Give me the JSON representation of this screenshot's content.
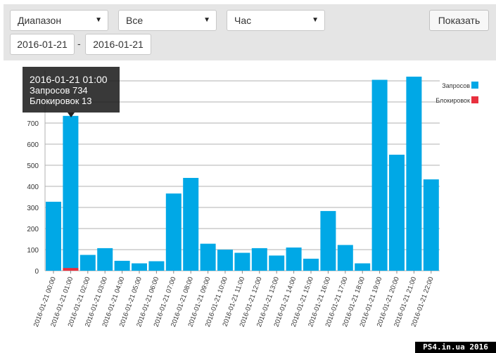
{
  "filters": {
    "range": "Диапазон",
    "scope": "Все",
    "interval": "Час",
    "show_button": "Показать",
    "date_from": "2016-01-21",
    "date_sep": "-",
    "date_to": "2016-01-21"
  },
  "tooltip": {
    "time": "2016-01-21 01:00",
    "requests": "Запросов 734",
    "blocked": "Блокировок 13"
  },
  "legend": {
    "requests": "Запросов",
    "blocked": "Блокировок"
  },
  "colors": {
    "requests": "#00a8e6",
    "blocked": "#e8303e"
  },
  "watermark": "PS4.in.ua  2016",
  "chart_data": {
    "type": "bar",
    "stacked": true,
    "categories": [
      "2016-01-21 00:00",
      "2016-01-21 01:00",
      "2016-01-21 02:00",
      "2016-01-21 03:00",
      "2016-01-21 04:00",
      "2016-01-21 05:00",
      "2016-01-21 06:00",
      "2016-01-21 07:00",
      "2016-01-21 08:00",
      "2016-01-21 09:00",
      "2016-01-21 10:00",
      "2016-01-21 11:00",
      "2016-01-21 12:00",
      "2016-01-21 13:00",
      "2016-01-21 14:00",
      "2016-01-21 15:00",
      "2016-01-21 16:00",
      "2016-01-21 17:00",
      "2016-01-21 18:00",
      "2016-01-21 19:00",
      "2016-01-21 20:00",
      "2016-01-21 21:00",
      "2016-01-21 22:00"
    ],
    "series": [
      {
        "name": "Запросов",
        "values": [
          327,
          734,
          75,
          107,
          47,
          35,
          45,
          366,
          440,
          128,
          100,
          85,
          107,
          72,
          110,
          57,
          283,
          122,
          35,
          905,
          550,
          920,
          433
        ]
      },
      {
        "name": "Блокировок",
        "values": [
          0,
          13,
          0,
          0,
          0,
          0,
          0,
          0,
          0,
          0,
          0,
          0,
          0,
          0,
          0,
          0,
          0,
          0,
          0,
          0,
          0,
          0,
          0
        ]
      }
    ],
    "yticks": [
      0,
      100,
      200,
      300,
      400,
      500,
      600,
      700
    ],
    "ylim": [
      0,
      950
    ],
    "grid": true,
    "legend_position": "top-right"
  }
}
